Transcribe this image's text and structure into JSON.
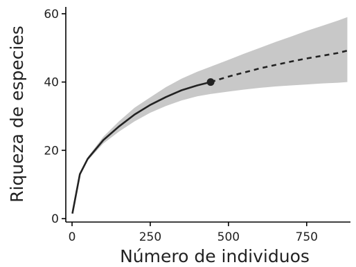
{
  "chart_data": {
    "type": "line",
    "title": "",
    "xlabel": "Número de individuos",
    "ylabel": "Riqueza de especies",
    "xlim": [
      -20,
      890
    ],
    "ylim": [
      -1,
      62
    ],
    "xticks": [
      0,
      250,
      500,
      750
    ],
    "yticks": [
      0,
      20,
      40,
      60
    ],
    "grid": false,
    "legend": "none",
    "colors": {
      "line": "#222222",
      "band": "#c8c8c8",
      "point": "#222222"
    },
    "observed_point": {
      "x": 443,
      "y": 40
    },
    "series": [
      {
        "style": "solid",
        "x": [
          1,
          25,
          50,
          100,
          150,
          200,
          250,
          300,
          350,
          400,
          443
        ],
        "y": [
          1.5,
          13,
          17.5,
          23,
          27,
          30.5,
          33.3,
          35.6,
          37.6,
          39,
          40
        ],
        "lower": [
          1.5,
          13,
          17,
          22,
          25.5,
          28.5,
          31,
          33,
          34.6,
          35.8,
          36.5
        ],
        "upper": [
          1.5,
          13,
          18,
          24,
          28.5,
          32.5,
          35.5,
          38.5,
          41,
          43,
          44.5
        ]
      },
      {
        "style": "dashed",
        "x": [
          443,
          500,
          550,
          600,
          650,
          700,
          750,
          800,
          850,
          880
        ],
        "y": [
          40,
          41.6,
          42.8,
          44,
          45,
          46,
          46.9,
          47.7,
          48.5,
          49.2
        ],
        "lower": [
          36.5,
          37.2,
          37.8,
          38.3,
          38.7,
          39,
          39.3,
          39.6,
          39.8,
          40
        ],
        "upper": [
          44.5,
          46.5,
          48.3,
          50,
          51.7,
          53.3,
          55,
          56.5,
          58,
          59
        ]
      }
    ]
  }
}
